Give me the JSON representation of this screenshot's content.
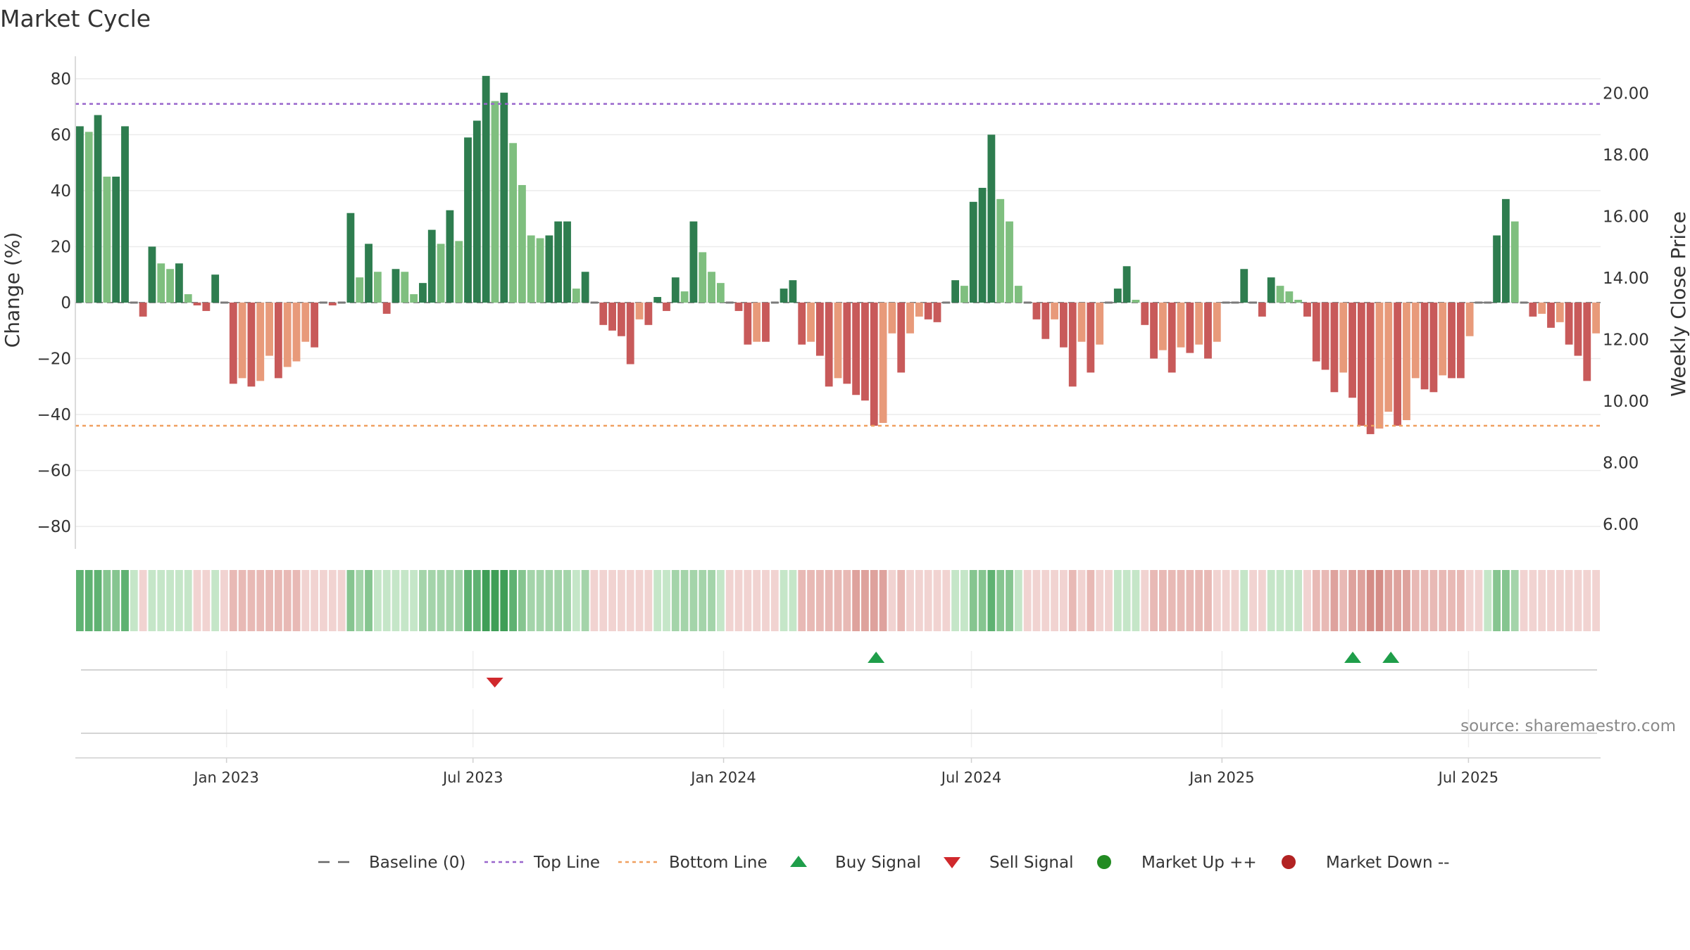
{
  "chart_data": {
    "type": "bar",
    "title": "Market Cycle",
    "ylabel": "Change (%)",
    "y2label": "Weekly Close Price",
    "ylim": [
      -88,
      88
    ],
    "y2lim": [
      5.2,
      21.2
    ],
    "yticks": [
      -80,
      -60,
      -40,
      -20,
      0,
      20,
      40,
      60,
      80
    ],
    "y2ticks": [
      "6.00",
      "8.00",
      "10.00",
      "12.00",
      "14.00",
      "16.00",
      "18.00",
      "20.00"
    ],
    "top_line": 71,
    "bottom_line": -44,
    "start_date": "2022-09-12",
    "end_date": "2025-09-29",
    "xticks": [
      {
        "date": "2023-01-01",
        "label": "Jan 2023"
      },
      {
        "date": "2023-07-01",
        "label": "Jul 2023"
      },
      {
        "date": "2024-01-01",
        "label": "Jan 2024"
      },
      {
        "date": "2024-07-01",
        "label": "Jul 2024"
      },
      {
        "date": "2025-01-01",
        "label": "Jan 2025"
      },
      {
        "date": "2025-07-01",
        "label": "Jul 2025"
      }
    ],
    "values": [
      63,
      61,
      67,
      45,
      45,
      63,
      0,
      -5,
      20,
      14,
      12,
      14,
      3,
      -1,
      -3,
      10,
      0,
      -29,
      -27,
      -30,
      -28,
      -19,
      -27,
      -23,
      -21,
      -14,
      -16,
      0,
      -1,
      0,
      32,
      9,
      21,
      11,
      -4,
      12,
      11,
      3,
      7,
      26,
      21,
      33,
      22,
      59,
      65,
      81,
      72,
      75,
      57,
      42,
      24,
      23,
      24,
      29,
      29,
      5,
      11,
      0,
      -8,
      -10,
      -12,
      -22,
      -6,
      -8,
      2,
      -3,
      9,
      4,
      29,
      18,
      11,
      7,
      0,
      -3,
      -15,
      -14,
      -14,
      0,
      5,
      8,
      -15,
      -14,
      -19,
      -30,
      -27,
      -29,
      -33,
      -35,
      -44,
      -43,
      -11,
      -25,
      -11,
      -5,
      -6,
      -7,
      0,
      8,
      6,
      36,
      41,
      60,
      37,
      29,
      6,
      0,
      -6,
      -13,
      -6,
      -16,
      -30,
      -14,
      -25,
      -15,
      0,
      5,
      13,
      1,
      -8,
      -20,
      -17,
      -25,
      -16,
      -18,
      -15,
      -20,
      -14,
      0,
      0,
      12,
      0,
      -5,
      9,
      6,
      4,
      1,
      -5,
      -21,
      -24,
      -32,
      -25,
      -34,
      -44,
      -47,
      -45,
      -39,
      -44,
      -42,
      -27,
      -31,
      -32,
      -26,
      -27,
      -27,
      -12,
      0,
      0,
      24,
      37,
      29,
      0,
      -5,
      -4,
      -9,
      -7,
      -15,
      -19,
      -28,
      -11
    ],
    "band_shades": [
      4,
      4,
      4,
      3,
      3,
      4,
      1,
      -1,
      1,
      1,
      1,
      1,
      1,
      -1,
      -1,
      1,
      -1,
      -2,
      -2,
      -2,
      -2,
      -2,
      -2,
      -2,
      -2,
      -1,
      -1,
      -1,
      -1,
      -1,
      3,
      2,
      3,
      1,
      1,
      1,
      1,
      1,
      2,
      2,
      2,
      2,
      2,
      4,
      4,
      5,
      5,
      5,
      4,
      3,
      2,
      2,
      2,
      2,
      2,
      1,
      2,
      -1,
      -1,
      -1,
      -1,
      -1,
      -1,
      -1,
      1,
      1,
      2,
      2,
      2,
      2,
      2,
      1,
      -1,
      -1,
      -1,
      -1,
      -1,
      -1,
      1,
      1,
      -2,
      -2,
      -2,
      -2,
      -2,
      -2,
      -3,
      -3,
      -3,
      -3,
      -1,
      -2,
      -1,
      -1,
      -1,
      -1,
      -1,
      1,
      1,
      3,
      3,
      4,
      3,
      3,
      1,
      -1,
      -1,
      -1,
      -1,
      -1,
      -2,
      -1,
      -2,
      -1,
      -1,
      1,
      1,
      1,
      -1,
      -2,
      -2,
      -2,
      -2,
      -2,
      -2,
      -2,
      -1,
      -1,
      -1,
      1,
      -1,
      -1,
      1,
      1,
      1,
      1,
      -1,
      -2,
      -2,
      -3,
      -2,
      -3,
      -3,
      -4,
      -4,
      -3,
      -3,
      -3,
      -2,
      -2,
      -2,
      -2,
      -2,
      -2,
      -1,
      -1,
      1,
      3,
      3,
      2,
      -1,
      -1,
      -1,
      -1,
      -1,
      -1,
      -1,
      -1,
      -1
    ],
    "buy_signals": [
      "2024-04-22",
      "2025-04-07",
      "2025-05-05"
    ],
    "sell_signals": [
      "2023-07-17"
    ],
    "legend_position": "bottom",
    "legend": [
      {
        "type": "baseline",
        "label": "Baseline (0)"
      },
      {
        "type": "top",
        "label": "Top Line"
      },
      {
        "type": "bottom",
        "label": "Bottom Line"
      },
      {
        "type": "buy",
        "label": "Buy Signal"
      },
      {
        "type": "sell",
        "label": "Sell Signal"
      },
      {
        "type": "up",
        "label": "Market Up ++"
      },
      {
        "type": "down",
        "label": "Market Down --"
      }
    ],
    "colors": {
      "green_strong": "#2e7d4f",
      "green_light": "#7fbf7f",
      "red_strong": "#c85a5a",
      "red_light": "#e89a7a",
      "top_line": "#9966cc",
      "bottom_line": "#f0a060",
      "buy": "#1f9e4a",
      "sell": "#d0282c",
      "market_up": "#228b22",
      "market_down": "#b22222",
      "baseline": "#666666"
    }
  },
  "source": "source: sharemaestro.com"
}
